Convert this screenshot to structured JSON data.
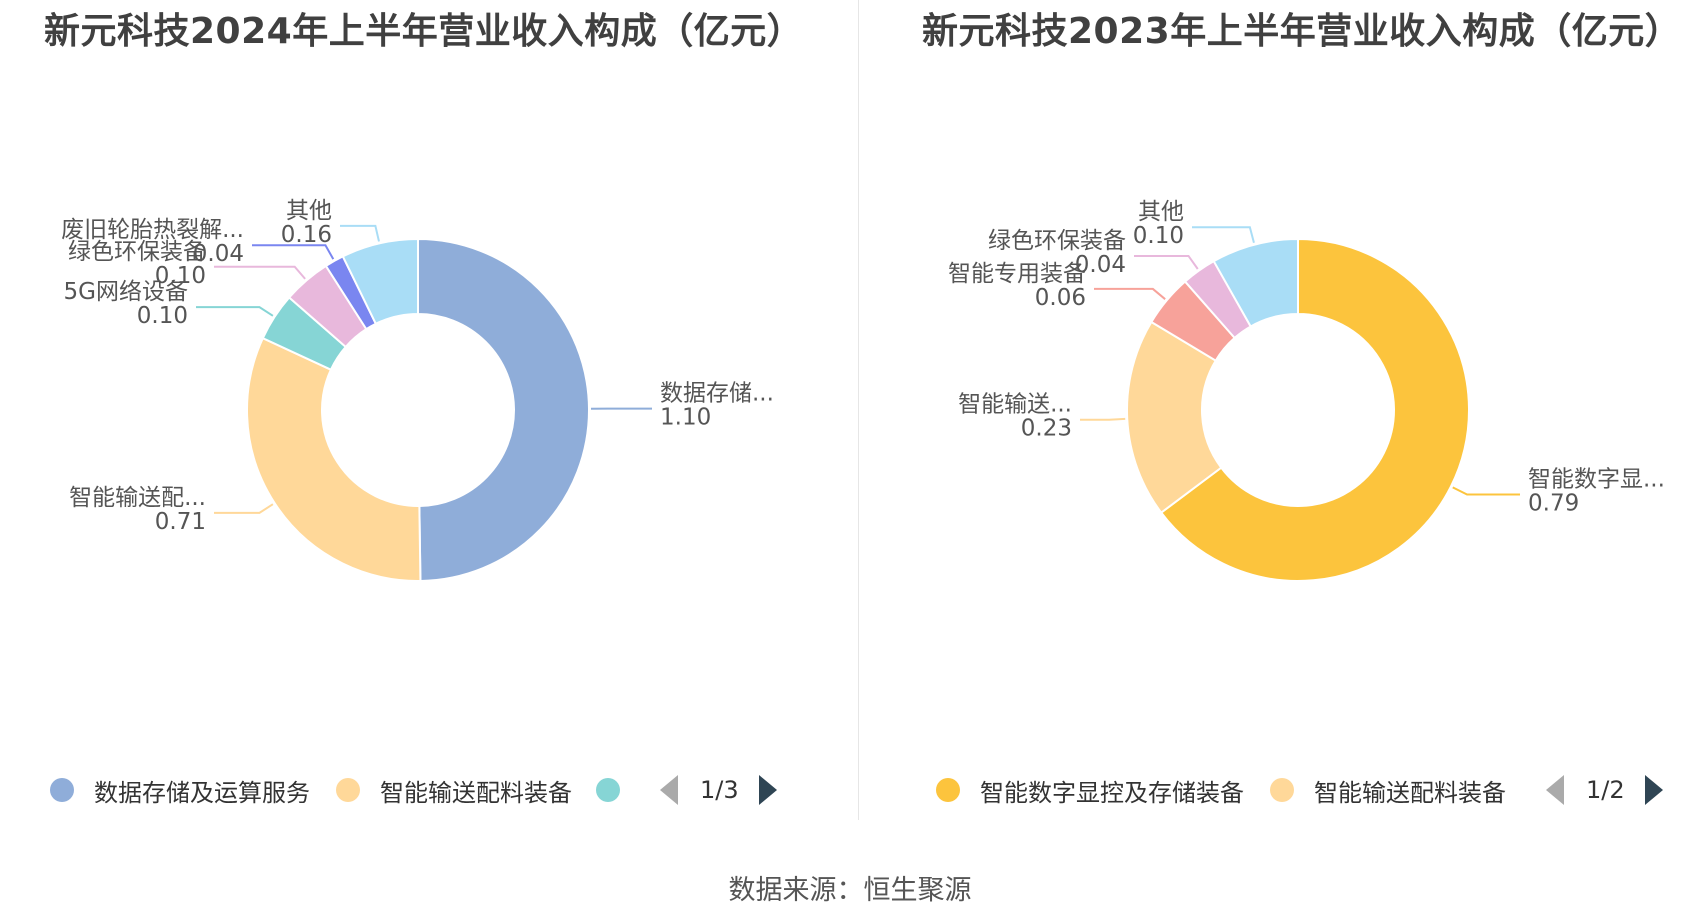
{
  "source": "数据来源：恒生聚源",
  "charts": [
    {
      "title": "新元科技2024年上半年营业收入构成（亿元）",
      "pager": "1/3",
      "legend": [
        {
          "label": "数据存储及运算服务",
          "color": "#8fadd9"
        },
        {
          "label": "智能输送配料装备",
          "color": "#ffd899"
        },
        {
          "label": "",
          "color": "#86d5d5"
        }
      ]
    },
    {
      "title": "新元科技2023年上半年营业收入构成（亿元）",
      "pager": "1/2",
      "legend": [
        {
          "label": "智能数字显控及存储装备",
          "color": "#fcc43d"
        },
        {
          "label": "智能输送配料装备",
          "color": "#ffd899"
        }
      ]
    }
  ],
  "chart_data": [
    {
      "type": "pie",
      "title": "新元科技2024年上半年营业收入构成（亿元）",
      "slices": [
        {
          "name": "数据存储...",
          "value": 1.1,
          "color": "#8fadd9"
        },
        {
          "name": "智能输送配...",
          "value": 0.71,
          "color": "#ffd899"
        },
        {
          "name": "5G网络设备",
          "value": 0.1,
          "color": "#86d5d5"
        },
        {
          "name": "绿色环保装备",
          "value": 0.1,
          "color": "#e8b8dc"
        },
        {
          "name": "废旧轮胎热裂解...",
          "value": 0.04,
          "color": "#7a86f0"
        },
        {
          "name": "其他",
          "value": 0.16,
          "color": "#a9ddf6"
        }
      ]
    },
    {
      "type": "pie",
      "title": "新元科技2023年上半年营业收入构成（亿元）",
      "slices": [
        {
          "name": "智能数字显...",
          "value": 0.79,
          "color": "#fcc43d"
        },
        {
          "name": "智能输送...",
          "value": 0.23,
          "color": "#ffd899"
        },
        {
          "name": "智能专用装备",
          "value": 0.06,
          "color": "#f7a29a"
        },
        {
          "name": "绿色环保装备",
          "value": 0.04,
          "color": "#e8b8dc"
        },
        {
          "name": "其他",
          "value": 0.1,
          "color": "#a9ddf6"
        }
      ]
    }
  ]
}
